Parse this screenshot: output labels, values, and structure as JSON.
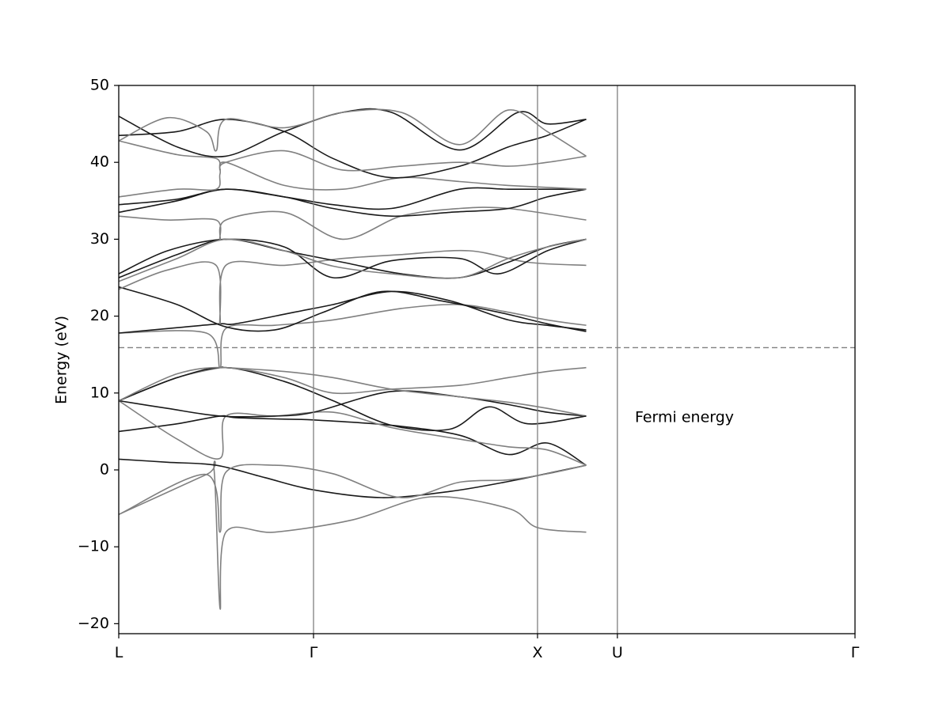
{
  "chart_data": {
    "type": "line",
    "title": "",
    "xlabel": "",
    "ylabel": "Energy (eV)",
    "ylim": [
      -21.3,
      50
    ],
    "yticks": [
      50,
      40,
      30,
      20,
      10,
      0,
      -10,
      -20
    ],
    "ytick_labels": [
      "50",
      "40",
      "30",
      "20",
      "10",
      "0",
      "−10",
      "−20"
    ],
    "xlim": [
      0,
      3.78
    ],
    "high_symmetry_points": [
      {
        "label": "L",
        "x": 0
      },
      {
        "label": "Γ",
        "x": 1.0
      },
      {
        "label": "X",
        "x": 2.15
      },
      {
        "label": "U",
        "x": 2.56
      },
      {
        "label": "Γ",
        "x": 3.78
      }
    ],
    "fermi_level": 15.9,
    "annotation": "Fermi energy",
    "annotation_at": {
      "x": 2.65,
      "y": 6.2
    },
    "colors": {
      "band_light": "#808080",
      "band_dark": "#1a1a1a",
      "vline": "#808080",
      "fermi": "#808080"
    },
    "bands": [
      {
        "shade": "light",
        "x": [
          0,
          0.45,
          0.49,
          0.52,
          0.55,
          0.8,
          1.2,
          1.6,
          2.0,
          2.15,
          2.4
        ],
        "y": [
          -5.8,
          -0.6,
          -0.2,
          -18,
          -8.1,
          -8.1,
          -6.5,
          -3.5,
          -5.0,
          -7.5,
          -8.1
        ]
      },
      {
        "shade": "dark",
        "x": [
          0,
          0.25,
          0.5,
          0.75,
          1.0,
          1.35,
          1.7,
          2.0,
          2.4
        ],
        "y": [
          1.4,
          1.0,
          0.6,
          -1.0,
          -2.6,
          -3.6,
          -2.8,
          -1.5,
          0.6
        ]
      },
      {
        "shade": "light",
        "x": [
          0,
          0.45,
          0.52,
          0.55,
          0.8,
          1.1,
          1.45,
          1.75,
          2.0,
          2.2,
          2.4
        ],
        "y": [
          -5.8,
          -0.6,
          -8.1,
          -0.3,
          0.6,
          -0.5,
          -3.6,
          -1.6,
          -1.3,
          -0.5,
          0.6
        ]
      },
      {
        "shade": "dark",
        "x": [
          0,
          0.3,
          0.52,
          0.6,
          0.85,
          1.0,
          1.4,
          1.75,
          2.0,
          2.2,
          2.4
        ],
        "y": [
          5.0,
          6.0,
          7.0,
          6.8,
          6.6,
          6.5,
          5.8,
          4.5,
          2.0,
          3.5,
          0.6
        ]
      },
      {
        "shade": "light",
        "x": [
          0,
          0.3,
          0.52,
          0.55,
          0.8,
          1.1,
          1.4,
          1.75,
          2.0,
          2.2,
          2.4
        ],
        "y": [
          9.0,
          4.0,
          1.5,
          7.0,
          7.0,
          7.5,
          5.5,
          4.0,
          3.0,
          2.6,
          0.6
        ]
      },
      {
        "shade": "dark",
        "x": [
          0,
          0.25,
          0.52,
          0.8,
          1.0,
          1.4,
          1.75,
          2.0,
          2.2,
          2.4
        ],
        "y": [
          9.0,
          8.0,
          7.0,
          7.0,
          7.5,
          10.2,
          9.5,
          8.5,
          7.5,
          7.0
        ]
      },
      {
        "shade": "light",
        "x": [
          0,
          0.3,
          0.52,
          0.55,
          0.85,
          1.1,
          1.4,
          1.75,
          2.0,
          2.2,
          2.4
        ],
        "y": [
          9.0,
          12.0,
          13.3,
          13.3,
          12.8,
          12.0,
          10.5,
          9.5,
          8.8,
          8.0,
          7.0
        ]
      },
      {
        "shade": "dark",
        "x": [
          0,
          0.3,
          0.55,
          0.85,
          1.1,
          1.4,
          1.7,
          1.9,
          2.1,
          2.4
        ],
        "y": [
          9.0,
          12.0,
          13.3,
          11.5,
          9.0,
          5.8,
          5.3,
          8.2,
          6.0,
          7.0
        ]
      },
      {
        "shade": "light",
        "x": [
          0,
          0.3,
          0.55,
          0.85,
          1.1,
          1.4,
          1.75,
          2.0,
          2.2,
          2.4
        ],
        "y": [
          9.0,
          12.5,
          13.3,
          12.0,
          10.0,
          10.5,
          11.0,
          12.0,
          12.8,
          13.3
        ]
      },
      {
        "shade": "light",
        "x": [
          0,
          0.45,
          0.52,
          0.55,
          0.8,
          1.1,
          1.45,
          1.75,
          2.0,
          2.2,
          2.4
        ],
        "y": [
          17.8,
          17.8,
          13.3,
          18.4,
          18.8,
          19.5,
          21.0,
          21.5,
          20.5,
          19.5,
          18.8
        ]
      },
      {
        "shade": "dark",
        "x": [
          0,
          0.3,
          0.52,
          0.6,
          0.9,
          1.1,
          1.4,
          1.7,
          2.0,
          2.2,
          2.4
        ],
        "y": [
          17.8,
          18.5,
          19.0,
          19.0,
          20.5,
          21.5,
          23.2,
          22.0,
          19.5,
          18.8,
          18.2
        ]
      },
      {
        "shade": "dark",
        "x": [
          0,
          0.3,
          0.55,
          0.8,
          1.05,
          1.35,
          1.65,
          1.95,
          2.2,
          2.4
        ],
        "y": [
          23.8,
          21.5,
          18.6,
          18.2,
          20.5,
          23.2,
          22.0,
          20.5,
          19.0,
          18.0
        ]
      },
      {
        "shade": "light",
        "x": [
          0,
          0.25,
          0.5,
          0.52,
          0.55,
          0.85,
          1.15,
          1.45,
          1.8,
          2.1,
          2.4
        ],
        "y": [
          23.5,
          26.0,
          26.6,
          19.0,
          26.6,
          26.6,
          27.5,
          28.0,
          28.5,
          27.0,
          26.6
        ]
      },
      {
        "shade": "dark",
        "x": [
          0,
          0.25,
          0.55,
          0.85,
          1.1,
          1.4,
          1.75,
          1.95,
          2.2,
          2.4
        ],
        "y": [
          25.5,
          28.5,
          30.0,
          29.0,
          25.0,
          27.2,
          27.5,
          25.5,
          28.5,
          30.0
        ]
      },
      {
        "shade": "dark",
        "x": [
          0,
          0.3,
          0.55,
          0.85,
          1.15,
          1.45,
          1.75,
          2.0,
          2.2,
          2.4
        ],
        "y": [
          25.0,
          28.0,
          30.0,
          28.5,
          27.0,
          25.5,
          25.0,
          27.0,
          29.0,
          30.0
        ]
      },
      {
        "shade": "light",
        "x": [
          0,
          0.3,
          0.55,
          0.85,
          1.1,
          1.4,
          1.75,
          2.0,
          2.2,
          2.4
        ],
        "y": [
          24.5,
          27.5,
          30.0,
          28.5,
          26.5,
          25.5,
          25.0,
          27.5,
          29.0,
          30.0
        ]
      },
      {
        "shade": "light",
        "x": [
          0,
          0.25,
          0.5,
          0.52,
          0.55,
          0.85,
          1.15,
          1.45,
          1.75,
          2.0,
          2.4
        ],
        "y": [
          33.0,
          32.5,
          32.5,
          30.0,
          32.5,
          33.5,
          30.0,
          33.0,
          34.0,
          34.0,
          32.5
        ]
      },
      {
        "shade": "dark",
        "x": [
          0,
          0.3,
          0.55,
          0.85,
          1.1,
          1.4,
          1.75,
          2.0,
          2.2,
          2.4
        ],
        "y": [
          34.5,
          35.2,
          36.5,
          35.5,
          34.5,
          34.0,
          36.5,
          36.5,
          36.5,
          36.5
        ]
      },
      {
        "shade": "dark",
        "x": [
          0,
          0.3,
          0.55,
          0.85,
          1.1,
          1.4,
          1.7,
          2.0,
          2.2,
          2.4
        ],
        "y": [
          33.5,
          35.0,
          36.5,
          35.5,
          34.0,
          33.0,
          33.5,
          34.0,
          35.5,
          36.5
        ]
      },
      {
        "shade": "light",
        "x": [
          0,
          0.3,
          0.5,
          0.52,
          0.55,
          0.85,
          1.15,
          1.45,
          1.75,
          2.0,
          2.4
        ],
        "y": [
          35.5,
          36.5,
          36.5,
          38.5,
          40.0,
          37.0,
          36.5,
          38.0,
          37.5,
          37.0,
          36.5
        ]
      },
      {
        "shade": "dark",
        "x": [
          0,
          0.3,
          0.55,
          0.85,
          1.1,
          1.4,
          1.75,
          2.0,
          2.2,
          2.4
        ],
        "y": [
          43.5,
          44.0,
          45.6,
          44.0,
          40.5,
          38.0,
          39.5,
          42.0,
          43.5,
          45.6
        ]
      },
      {
        "shade": "light",
        "x": [
          0,
          0.3,
          0.5,
          0.52,
          0.55,
          0.85,
          1.15,
          1.45,
          1.75,
          2.0,
          2.2,
          2.4
        ],
        "y": [
          42.8,
          41.0,
          40.5,
          39.0,
          40.0,
          41.5,
          39.0,
          39.5,
          40.0,
          39.5,
          40.0,
          40.8
        ]
      },
      {
        "shade": "dark",
        "x": [
          0,
          0.3,
          0.55,
          0.85,
          1.15,
          1.4,
          1.75,
          2.05,
          2.2,
          2.4
        ],
        "y": [
          46.0,
          42.0,
          40.8,
          44.0,
          46.5,
          46.5,
          41.6,
          46.5,
          45.0,
          45.6
        ]
      },
      {
        "shade": "light",
        "x": [
          0,
          0.25,
          0.45,
          0.5,
          0.55,
          0.85,
          1.15,
          1.45,
          1.75,
          2.0,
          2.2,
          2.4
        ],
        "y": [
          42.8,
          45.8,
          44.0,
          41.5,
          45.6,
          44.5,
          46.5,
          46.5,
          42.3,
          46.8,
          44.0,
          40.8
        ]
      }
    ]
  }
}
